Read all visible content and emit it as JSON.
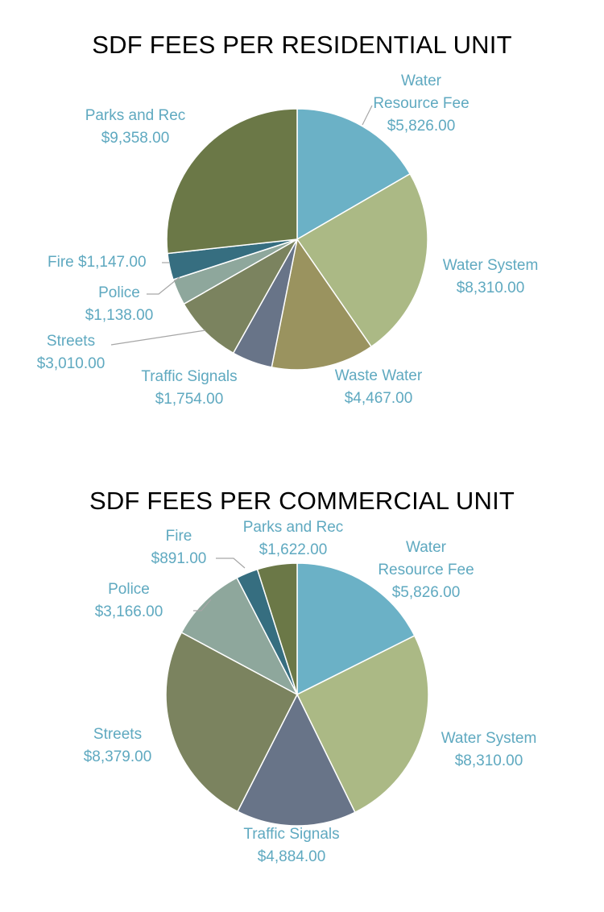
{
  "chart_data": [
    {
      "type": "pie",
      "title": "SDF FEES PER RESIDENTIAL UNIT",
      "categories": [
        "Water Resource Fee",
        "Water System",
        "Waste Water",
        "Traffic Signals",
        "Streets",
        "Police",
        "Fire",
        "Parks and Rec"
      ],
      "values": [
        5826.0,
        8310.0,
        4467.0,
        1754.0,
        3010.0,
        1138.0,
        1147.0,
        9358.0
      ],
      "labels": [
        {
          "lines": [
            "Water",
            "Resource Fee",
            "$5,826.00"
          ]
        },
        {
          "lines": [
            "Water System",
            "$8,310.00"
          ]
        },
        {
          "lines": [
            "Waste Water",
            "$4,467.00"
          ]
        },
        {
          "lines": [
            "Traffic Signals",
            "$1,754.00"
          ]
        },
        {
          "lines": [
            "Streets",
            "$3,010.00"
          ]
        },
        {
          "lines": [
            "Police",
            "$1,138.00"
          ]
        },
        {
          "lines": [
            "Fire  $1,147.00"
          ]
        },
        {
          "lines": [
            "Parks and Rec",
            "$9,358.00"
          ]
        }
      ],
      "colors": [
        "#6bb1c6",
        "#abb985",
        "#9a935f",
        "#687488",
        "#7b835f",
        "#8ea79c",
        "#366e80",
        "#6b7847"
      ],
      "label_color": "#5fa9c0",
      "leader_color": "#a6a6a6"
    },
    {
      "type": "pie",
      "title": "SDF FEES PER COMMERCIAL UNIT",
      "categories": [
        "Water Resource Fee",
        "Water System",
        "Traffic Signals",
        "Streets",
        "Police",
        "Fire",
        "Parks and Rec"
      ],
      "values": [
        5826.0,
        8310.0,
        4884.0,
        8379.0,
        3166.0,
        891.0,
        1622.0
      ],
      "labels": [
        {
          "lines": [
            "Water",
            "Resource Fee",
            "$5,826.00"
          ]
        },
        {
          "lines": [
            "Water System",
            "$8,310.00"
          ]
        },
        {
          "lines": [
            "Traffic Signals",
            "$4,884.00"
          ]
        },
        {
          "lines": [
            "Streets",
            "$8,379.00"
          ]
        },
        {
          "lines": [
            "Police",
            "$3,166.00"
          ]
        },
        {
          "lines": [
            "Fire",
            "$891.00"
          ]
        },
        {
          "lines": [
            "Parks and Rec",
            "$1,622.00"
          ]
        }
      ],
      "colors": [
        "#6bb1c6",
        "#abb985",
        "#687488",
        "#7b835f",
        "#8ea79c",
        "#366e80",
        "#6b7847"
      ],
      "label_color": "#5fa9c0",
      "leader_color": "#a6a6a6"
    }
  ]
}
